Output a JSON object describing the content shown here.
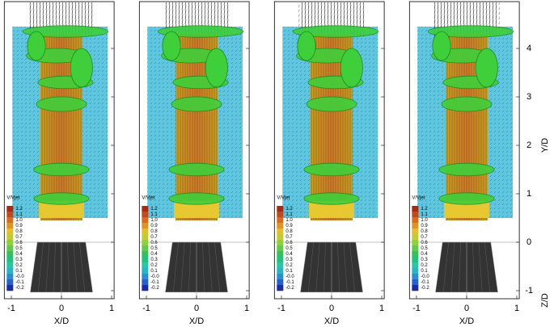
{
  "panels": [
    {
      "x_label": "X/D",
      "x_ticks": [
        -1,
        0,
        1
      ],
      "colorbar": {
        "title": "V/Vjet",
        "labels": [
          "1.2",
          "1.1",
          "1.0",
          "0.9",
          "0.8",
          "0.7",
          "0.6",
          "0.5",
          "0.4",
          "0.3",
          "0.2",
          "0.1",
          "-0.0",
          "-0.1",
          "-0.2"
        ]
      }
    },
    {
      "x_label": "X/D",
      "x_ticks": [
        -1,
        0,
        1
      ],
      "colorbar": {
        "title": "V/Vjet",
        "labels": [
          "1.2",
          "1.1",
          "1.0",
          "0.9",
          "0.8",
          "0.7",
          "0.6",
          "0.5",
          "0.4",
          "0.3",
          "0.2",
          "0.1",
          "-0.0",
          "-0.1",
          "-0.2"
        ]
      }
    },
    {
      "x_label": "X/D",
      "x_ticks": [
        -1,
        0,
        1
      ],
      "colorbar": {
        "title": "V/Vjet",
        "labels": [
          "1.2",
          "1.1",
          "1.0",
          "0.9",
          "0.8",
          "0.7",
          "0.6",
          "0.5",
          "0.4",
          "0.3",
          "0.2",
          "0.1",
          "-0.0",
          "-0.1",
          "-0.2"
        ]
      }
    },
    {
      "x_label": "X/D",
      "x_ticks": [
        -1,
        0,
        1
      ],
      "colorbar": {
        "title": "V/Vjet",
        "labels": [
          "1.2",
          "1.1",
          "1.0",
          "0.9",
          "0.8",
          "0.7",
          "0.6",
          "0.5",
          "0.4",
          "0.3",
          "0.2",
          "0.1",
          "-0.0",
          "-0.1",
          "-0.2"
        ]
      }
    }
  ],
  "y_axis": {
    "label": "Y/D",
    "ticks": [
      4,
      3,
      2,
      1,
      0,
      -1
    ]
  },
  "z_axis": {
    "label": "Z/D"
  }
}
